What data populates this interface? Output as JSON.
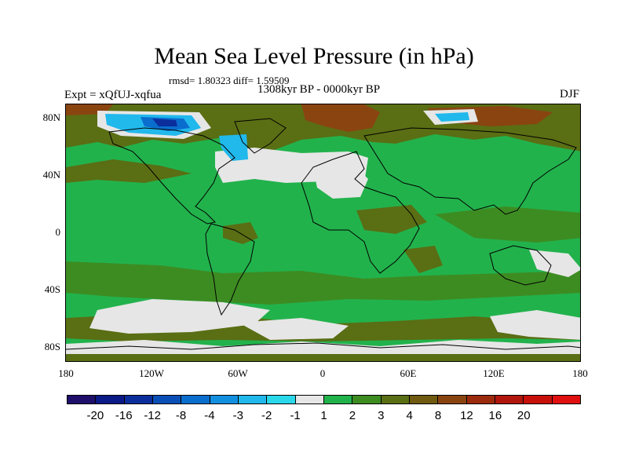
{
  "figure": {
    "title": "Mean Sea Level Pressure (in hPa)",
    "stats": "rmsd= 1.80323 diff= 1.59509",
    "experiment": "Expt = xQfUJ-xqfua",
    "period": "1308kyr BP - 0000kyr BP",
    "season": "DJF"
  },
  "axes": {
    "lat_labels": [
      "80N",
      "40N",
      "0",
      "40S",
      "80S"
    ],
    "lon_labels": [
      "180",
      "120W",
      "60W",
      "0",
      "60E",
      "120E",
      "180"
    ]
  },
  "colorbar": {
    "colors": [
      "#1f0f6b",
      "#0a1a86",
      "#0b2e9c",
      "#0a4fb6",
      "#0a6ece",
      "#138fe0",
      "#21b8ec",
      "#2ad8ea",
      "#e6e6e6",
      "#22b24c",
      "#3d8c22",
      "#5a6e14",
      "#6f5a10",
      "#8a4410",
      "#9c2a0c",
      "#b0160c",
      "#c8100a",
      "#e01010"
    ],
    "labels": [
      "-20",
      "-16",
      "-12",
      "-8",
      "-4",
      "-3",
      "-2",
      "-1",
      "1",
      "2",
      "3",
      "4",
      "8",
      "12",
      "16",
      "20"
    ]
  },
  "field_colors": {
    "ocean": "#22b24c",
    "weak_positive": "#3d8c22",
    "mid_positive": "#5a6e14",
    "high_positive": "#8a4410",
    "near_zero": "#e6e6e6",
    "neg_small": "#21b8ec",
    "neg_mid": "#0a6ece",
    "neg_strong": "#0b2e9c"
  }
}
